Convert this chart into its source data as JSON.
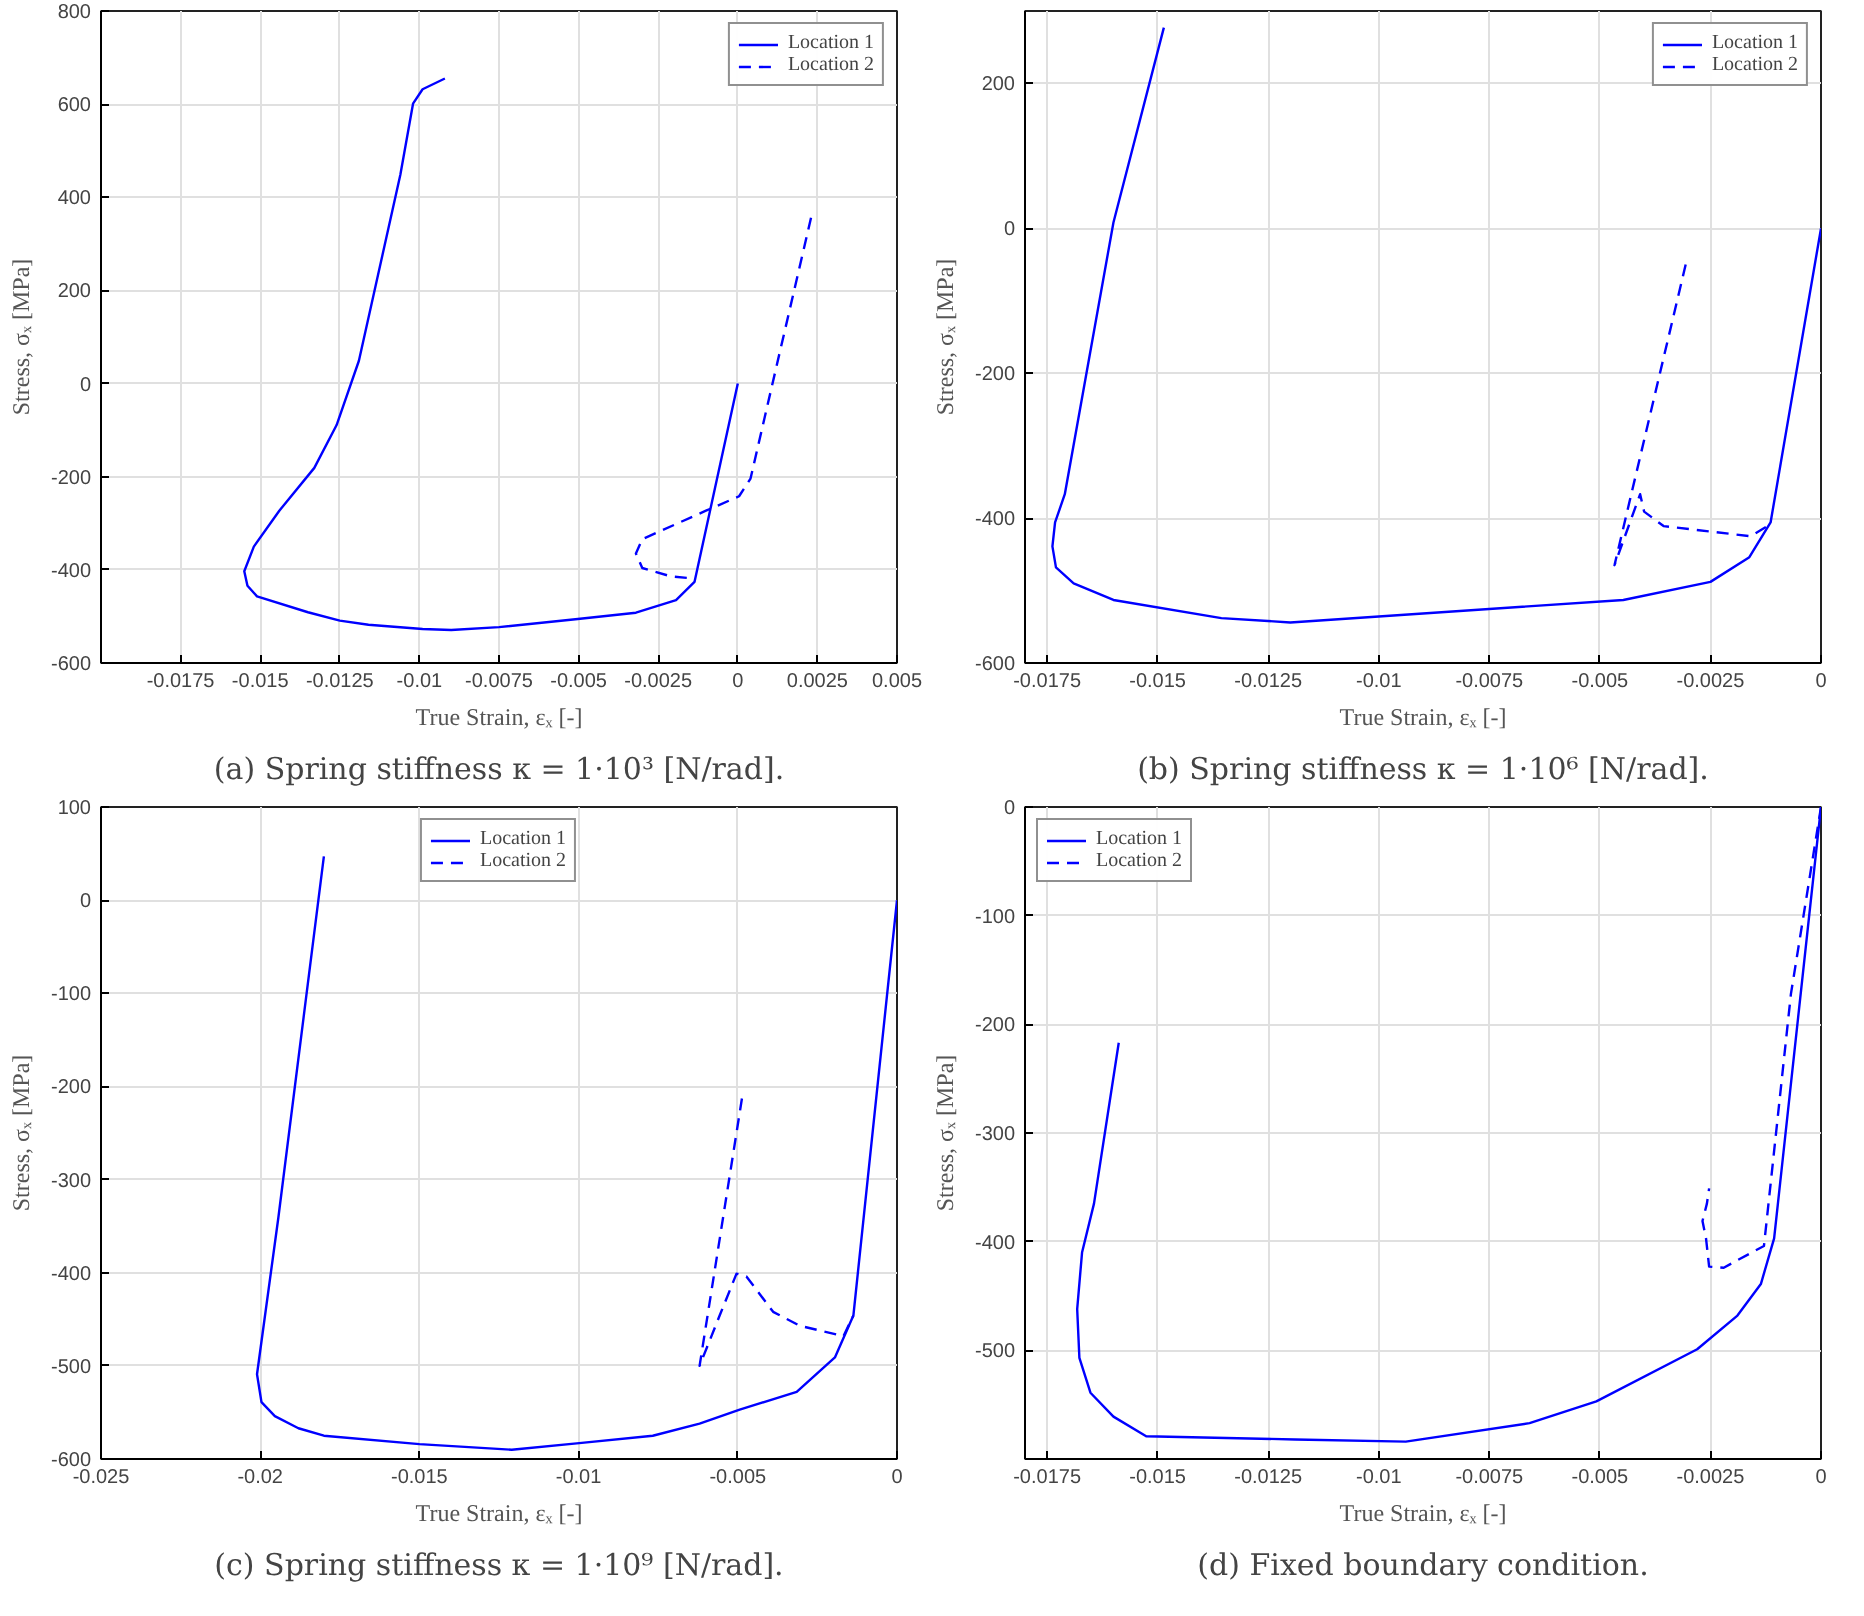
{
  "chart_data": [
    {
      "type": "line",
      "title": "(a) Spring stiffness κ = 1·10³ [N/rad].",
      "xlabel": "True Strain, εₓ [-]",
      "ylabel": "Stress, σₓ [MPa]",
      "xlim": [
        -0.02,
        0.005
      ],
      "ylim": [
        -600,
        800
      ],
      "xticks": [
        -0.0175,
        -0.015,
        -0.0125,
        -0.01,
        -0.0075,
        -0.005,
        -0.0025,
        0,
        0.0025,
        0.005
      ],
      "yticks": [
        -600,
        -400,
        -200,
        0,
        200,
        400,
        600,
        800
      ],
      "grid": true,
      "legend": "top right",
      "series": [
        {
          "name": "Location 1",
          "color": "#0000ff",
          "line_style": "solid",
          "x": [
            0,
            -0.00136,
            -0.00194,
            -0.0032,
            -0.0051,
            -0.0075,
            -0.009,
            -0.0099,
            -0.0116,
            -0.0125,
            -0.0135,
            -0.0151,
            -0.0154,
            -0.0155,
            -0.0152,
            -0.0144,
            -0.0133,
            -0.0126,
            -0.0119,
            -0.0113,
            -0.0106,
            -0.0102,
            -0.0099,
            -0.0092
          ],
          "values": [
            0,
            -426,
            -465,
            -492,
            -506,
            -523,
            -529,
            -527,
            -518,
            -509,
            -491,
            -457,
            -434,
            -403,
            -350,
            -273,
            -181,
            -89,
            49,
            233,
            448,
            601,
            632,
            655
          ]
        },
        {
          "name": "Location 2",
          "color": "#0000ff",
          "line_style": "dashed",
          "x": [
            0.0023,
            0.0011,
            0.0004,
            4e-05,
            -0.001,
            -0.003,
            -0.0032,
            -0.003,
            -0.0021,
            -0.00147
          ],
          "values": [
            356,
            3,
            -204,
            -242,
            -273,
            -334,
            -365,
            -396,
            -414,
            -418
          ]
        }
      ]
    },
    {
      "type": "line",
      "title": "(b) Spring stiffness κ = 1·10⁶ [N/rad].",
      "xlabel": "True Strain, εₓ [-]",
      "ylabel": "Stress, σₓ [MPa]",
      "xlim": [
        -0.018,
        0
      ],
      "ylim": [
        -600,
        300
      ],
      "xticks": [
        -0.0175,
        -0.015,
        -0.0125,
        -0.01,
        -0.0075,
        -0.005,
        -0.0025,
        0
      ],
      "yticks": [
        -600,
        -400,
        -200,
        0,
        200
      ],
      "grid": true,
      "legend": "top right",
      "series": [
        {
          "name": "Location 1",
          "color": "#0000ff",
          "line_style": "solid",
          "x": [
            0,
            -0.00114,
            -0.00162,
            -0.0025,
            -0.00447,
            -0.012,
            -0.01356,
            -0.016,
            -0.0169,
            -0.0173,
            -0.01738,
            -0.01732,
            -0.0171,
            -0.016,
            -0.01486
          ],
          "values": [
            0,
            -406,
            -454,
            -488,
            -513,
            -544,
            -538,
            -513,
            -490,
            -468,
            -439,
            -406,
            -367,
            8,
            277
          ]
        },
        {
          "name": "Location 2",
          "color": "#0000ff",
          "line_style": "dashed",
          "x": [
            -0.00306,
            -0.00467,
            -0.00409,
            -0.004,
            -0.00356,
            -0.00159,
            -0.00121
          ],
          "values": [
            -50,
            -465,
            -367,
            -391,
            -411,
            -425,
            -411
          ]
        }
      ]
    },
    {
      "type": "line",
      "title": "(c) Spring stiffness κ = 1·10⁹ [N/rad].",
      "xlabel": "True Strain, εₓ [-]",
      "ylabel": "Stress, σₓ [MPa]",
      "xlim": [
        -0.025,
        0
      ],
      "ylim": [
        -600,
        100
      ],
      "xticks": [
        -0.025,
        -0.02,
        -0.015,
        -0.01,
        -0.005,
        0
      ],
      "yticks": [
        -600,
        -500,
        -400,
        -300,
        -200,
        -100,
        0,
        100
      ],
      "grid": true,
      "legend": "top",
      "series": [
        {
          "name": "Location 1",
          "color": "#0000ff",
          "line_style": "solid",
          "x": [
            0,
            -0.00137,
            -0.00195,
            -0.00315,
            -0.00494,
            -0.0062,
            -0.00767,
            -0.00998,
            -0.0121,
            -0.015,
            -0.018,
            -0.0188,
            -0.01954,
            -0.01996,
            -0.0201,
            -0.01943,
            -0.018
          ],
          "values": [
            0,
            -446,
            -491,
            -528,
            -547,
            -562,
            -575,
            -583,
            -590,
            -584,
            -575,
            -567,
            -554,
            -539,
            -509,
            -341,
            47
          ]
        },
        {
          "name": "Location 2",
          "color": "#0000ff",
          "line_style": "dashed",
          "x": [
            -0.00487,
            -0.0062,
            -0.00557,
            -0.00504,
            -0.00473,
            -0.00389,
            -0.00305,
            -0.00168,
            -0.00137
          ],
          "values": [
            -213,
            -500,
            -446,
            -401,
            -404,
            -442,
            -457,
            -468,
            -446
          ]
        }
      ]
    },
    {
      "type": "line",
      "title": "(d) Fixed boundary condition.",
      "xlabel": "True Strain, εₓ [-]",
      "ylabel": "Stress, σₓ [MPa]",
      "xlim": [
        -0.018,
        0
      ],
      "ylim": [
        -600,
        0
      ],
      "xticks": [
        -0.0175,
        -0.015,
        -0.0125,
        -0.01,
        -0.0075,
        -0.005,
        -0.0025,
        0
      ],
      "yticks": [
        -500,
        -400,
        -300,
        -200,
        -100,
        0
      ],
      "grid": true,
      "legend": "top left",
      "series": [
        {
          "name": "Location 1",
          "color": "#0000ff",
          "line_style": "solid",
          "x": [
            0,
            -0.00106,
            -0.00136,
            -0.00189,
            -0.0028,
            -0.00508,
            -0.00659,
            -0.00939,
            -0.01189,
            -0.01526,
            -0.016,
            -0.01652,
            -0.01677,
            -0.01682,
            -0.01671,
            -0.01644,
            -0.01588
          ],
          "values": [
            0,
            -397,
            -439,
            -468,
            -499,
            -547,
            -567,
            -584,
            -582,
            -579,
            -561,
            -539,
            -507,
            -462,
            -410,
            -365,
            -217
          ]
        },
        {
          "name": "Location 2",
          "color": "#0000ff",
          "line_style": "dashed",
          "x": [
            0,
            -0.00068,
            -0.00129,
            -0.00189,
            -0.0022,
            -0.00253,
            -0.0026,
            -0.00268,
            -0.00258,
            -0.00253
          ],
          "values": [
            0,
            -172,
            -404,
            -417,
            -424,
            -423,
            -397,
            -381,
            -365,
            -351
          ]
        }
      ]
    }
  ]
}
